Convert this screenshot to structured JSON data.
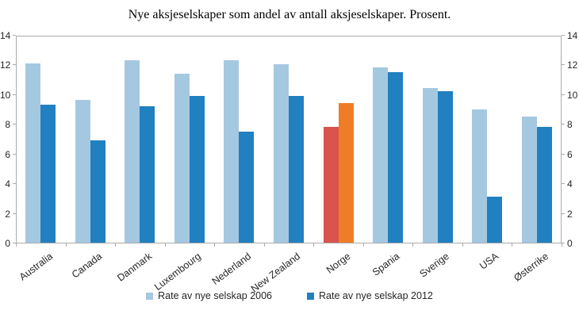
{
  "chart_data": {
    "type": "bar",
    "title": "Nye aksjeselskaper som andel av antall aksjeselskaper. Prosent.",
    "categories": [
      "Australia",
      "Canada",
      "Danmark",
      "Luxembourg",
      "Nederland",
      "New Zealand",
      "Norge",
      "Spania",
      "Sverige",
      "USA",
      "Østerrike"
    ],
    "series": [
      {
        "name": "Rate av nye selskap 2006",
        "year": "2006",
        "color": "#a5c8e1",
        "values": [
          12.1,
          9.6,
          12.3,
          11.4,
          12.3,
          12.0,
          7.8,
          11.8,
          10.4,
          9.0,
          8.5
        ]
      },
      {
        "name": "Rate av nye selskap 2012",
        "year": "2012",
        "color": "#2080c0",
        "values": [
          9.3,
          6.9,
          9.2,
          9.9,
          7.5,
          9.9,
          9.4,
          11.5,
          10.2,
          3.1,
          7.8
        ]
      }
    ],
    "highlight": {
      "category": "Norge",
      "colors": [
        "#d9534f",
        "#ef7d27"
      ]
    },
    "ylim": [
      0,
      14
    ],
    "yticks": [
      0,
      2,
      4,
      6,
      8,
      10,
      12,
      14
    ],
    "axes": "dual-y",
    "grid": false,
    "legend_position": "bottom-center",
    "colors": {
      "series_2006": "#a5c8e1",
      "series_2012": "#2080c0",
      "norge_2006": "#d9534f",
      "norge_2012": "#ef7d27",
      "axis": "#ababab"
    }
  }
}
